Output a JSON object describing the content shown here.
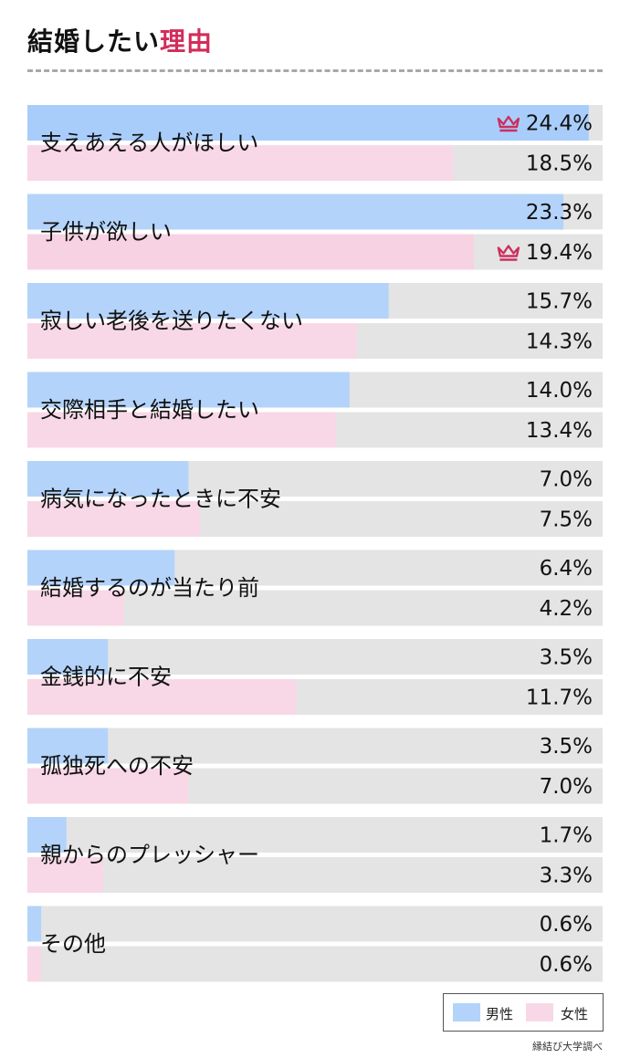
{
  "title": {
    "main": "結婚したい",
    "accent": "理由"
  },
  "chart_data": {
    "type": "bar",
    "orientation": "horizontal",
    "xlim": [
      0,
      25
    ],
    "unit": "%",
    "categories": [
      "支えあえる人がほしい",
      "子供が欲しい",
      "寂しい老後を送りたくない",
      "交際相手と結婚したい",
      "病気になったときに不安",
      "結婚するのが当たり前",
      "金銭的に不安",
      "孤独死への不安",
      "親からのプレッシャー",
      "その他"
    ],
    "series": [
      {
        "name": "男性",
        "values": [
          24.4,
          23.3,
          15.7,
          14.0,
          7.0,
          6.4,
          3.5,
          3.5,
          1.7,
          0.6
        ],
        "labels": [
          "24.4%",
          "23.3%",
          "15.7%",
          "14.0%",
          "7.0%",
          "6.4%",
          "3.5%",
          "3.5%",
          "1.7%",
          "0.6%"
        ],
        "top_index": 0
      },
      {
        "name": "女性",
        "values": [
          18.5,
          19.4,
          14.3,
          13.4,
          7.5,
          4.2,
          11.7,
          7.0,
          3.3,
          0.6
        ],
        "labels": [
          "18.5%",
          "19.4%",
          "14.3%",
          "13.4%",
          "7.5%",
          "4.2%",
          "11.7%",
          "7.0%",
          "3.3%",
          "0.6%"
        ],
        "top_index": 1
      }
    ],
    "legend": {
      "placement": "bottom-right"
    }
  },
  "colors": {
    "male": "#b3d3fa",
    "male_top": "#a9cdfb",
    "female": "#f8d8e6",
    "female_top": "#f7d2e3",
    "track": "#e4e4e4",
    "crown": "#cc2f5e",
    "accent": "#d12d5a"
  },
  "icons": {
    "top_rank": "crown-icon"
  },
  "source": "縁結び大学調べ"
}
